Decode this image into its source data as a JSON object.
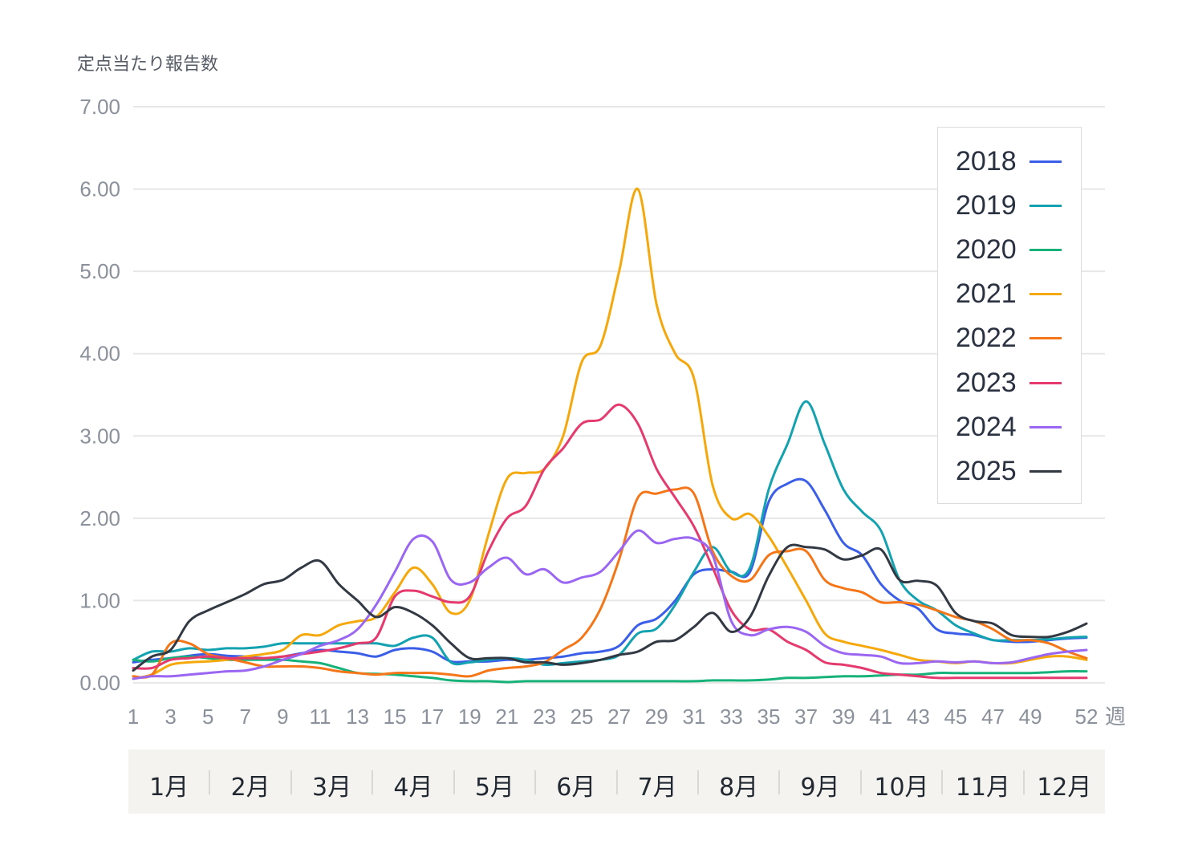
{
  "chart_data": {
    "type": "line",
    "ylabel": "定点当たり報告数",
    "ylim": [
      0,
      7
    ],
    "yticks": [
      "0.00",
      "1.00",
      "2.00",
      "3.00",
      "4.00",
      "5.00",
      "6.00",
      "7.00"
    ],
    "xlim": [
      1,
      52
    ],
    "xticks": [
      "1",
      "3",
      "5",
      "7",
      "9",
      "11",
      "13",
      "15",
      "17",
      "19",
      "21",
      "23",
      "25",
      "27",
      "29",
      "31",
      "33",
      "35",
      "37",
      "39",
      "41",
      "43",
      "45",
      "47",
      "49",
      "52"
    ],
    "xunit": "週",
    "months": [
      "1月",
      "2月",
      "3月",
      "4月",
      "5月",
      "6月",
      "7月",
      "8月",
      "9月",
      "10月",
      "11月",
      "12月"
    ],
    "grid": true,
    "legend_position": "top-right",
    "x": [
      1,
      2,
      3,
      4,
      5,
      6,
      7,
      8,
      9,
      10,
      11,
      12,
      13,
      14,
      15,
      16,
      17,
      18,
      19,
      20,
      21,
      22,
      23,
      24,
      25,
      26,
      27,
      28,
      29,
      30,
      31,
      32,
      33,
      34,
      35,
      36,
      37,
      38,
      39,
      40,
      41,
      42,
      43,
      44,
      45,
      46,
      47,
      48,
      49,
      50,
      51,
      52
    ],
    "series": [
      {
        "name": "2018",
        "color": "#3b5ee8",
        "values": [
          0.25,
          0.28,
          0.3,
          0.33,
          0.35,
          0.33,
          0.32,
          0.3,
          0.32,
          0.36,
          0.4,
          0.38,
          0.36,
          0.32,
          0.4,
          0.42,
          0.38,
          0.26,
          0.26,
          0.26,
          0.28,
          0.28,
          0.3,
          0.32,
          0.36,
          0.38,
          0.45,
          0.7,
          0.78,
          1.0,
          1.32,
          1.38,
          1.35,
          1.35,
          2.2,
          2.42,
          2.45,
          2.1,
          1.7,
          1.55,
          1.2,
          1.0,
          0.9,
          0.65,
          0.6,
          0.58,
          0.52,
          0.5,
          0.5,
          0.52,
          0.54,
          0.55
        ]
      },
      {
        "name": "2019",
        "color": "#13a2b0",
        "values": [
          0.28,
          0.38,
          0.38,
          0.42,
          0.4,
          0.42,
          0.42,
          0.44,
          0.48,
          0.48,
          0.48,
          0.48,
          0.48,
          0.48,
          0.45,
          0.55,
          0.55,
          0.25,
          0.25,
          0.28,
          0.3,
          0.28,
          0.22,
          0.24,
          0.26,
          0.28,
          0.34,
          0.6,
          0.66,
          0.95,
          1.35,
          1.65,
          1.35,
          1.4,
          2.35,
          2.9,
          3.42,
          2.9,
          2.35,
          2.08,
          1.85,
          1.25,
          1.0,
          0.88,
          0.7,
          0.6,
          0.52,
          0.52,
          0.52,
          0.53,
          0.55,
          0.56
        ]
      },
      {
        "name": "2020",
        "color": "#16b27a",
        "values": [
          0.28,
          0.26,
          0.3,
          0.32,
          0.3,
          0.28,
          0.28,
          0.28,
          0.28,
          0.26,
          0.24,
          0.18,
          0.12,
          0.11,
          0.1,
          0.08,
          0.06,
          0.03,
          0.02,
          0.02,
          0.01,
          0.02,
          0.02,
          0.02,
          0.02,
          0.02,
          0.02,
          0.02,
          0.02,
          0.02,
          0.02,
          0.03,
          0.03,
          0.03,
          0.04,
          0.06,
          0.06,
          0.07,
          0.08,
          0.08,
          0.09,
          0.1,
          0.1,
          0.12,
          0.12,
          0.12,
          0.12,
          0.12,
          0.12,
          0.13,
          0.14,
          0.14
        ]
      },
      {
        "name": "2021",
        "color": "#f5a80c",
        "values": [
          0.05,
          0.1,
          0.22,
          0.25,
          0.26,
          0.28,
          0.32,
          0.35,
          0.4,
          0.58,
          0.58,
          0.7,
          0.75,
          0.8,
          1.1,
          1.4,
          1.2,
          0.85,
          1.0,
          1.8,
          2.48,
          2.55,
          2.6,
          3.0,
          3.9,
          4.1,
          5.0,
          6.0,
          4.6,
          4.0,
          3.7,
          2.4,
          2.0,
          2.05,
          1.78,
          1.4,
          1.0,
          0.6,
          0.5,
          0.45,
          0.4,
          0.34,
          0.28,
          0.26,
          0.24,
          0.26,
          0.24,
          0.24,
          0.28,
          0.32,
          0.32,
          0.28
        ]
      },
      {
        "name": "2022",
        "color": "#f47618",
        "values": [
          0.08,
          0.1,
          0.48,
          0.48,
          0.35,
          0.3,
          0.25,
          0.2,
          0.2,
          0.2,
          0.18,
          0.14,
          0.12,
          0.1,
          0.12,
          0.12,
          0.12,
          0.1,
          0.08,
          0.15,
          0.18,
          0.2,
          0.25,
          0.4,
          0.55,
          0.9,
          1.5,
          2.25,
          2.3,
          2.35,
          2.3,
          1.6,
          1.3,
          1.25,
          1.55,
          1.6,
          1.6,
          1.25,
          1.15,
          1.1,
          0.98,
          0.98,
          0.95,
          0.88,
          0.8,
          0.75,
          0.65,
          0.52,
          0.52,
          0.48,
          0.38,
          0.3
        ]
      },
      {
        "name": "2023",
        "color": "#e53a6e",
        "values": [
          0.18,
          0.18,
          0.28,
          0.3,
          0.32,
          0.3,
          0.3,
          0.3,
          0.32,
          0.35,
          0.38,
          0.42,
          0.48,
          0.55,
          1.05,
          1.12,
          1.05,
          0.98,
          1.05,
          1.6,
          2.0,
          2.15,
          2.6,
          2.85,
          3.15,
          3.2,
          3.38,
          3.15,
          2.6,
          2.25,
          1.9,
          1.4,
          0.88,
          0.65,
          0.65,
          0.5,
          0.4,
          0.25,
          0.22,
          0.18,
          0.12,
          0.1,
          0.08,
          0.06,
          0.06,
          0.06,
          0.06,
          0.06,
          0.06,
          0.06,
          0.06,
          0.06
        ]
      },
      {
        "name": "2024",
        "color": "#9a66f2",
        "values": [
          0.05,
          0.08,
          0.08,
          0.1,
          0.12,
          0.14,
          0.15,
          0.2,
          0.28,
          0.35,
          0.45,
          0.52,
          0.65,
          0.95,
          1.35,
          1.75,
          1.72,
          1.25,
          1.22,
          1.4,
          1.52,
          1.32,
          1.38,
          1.22,
          1.28,
          1.35,
          1.6,
          1.85,
          1.7,
          1.75,
          1.75,
          1.55,
          0.75,
          0.58,
          0.65,
          0.68,
          0.62,
          0.45,
          0.36,
          0.34,
          0.32,
          0.24,
          0.24,
          0.26,
          0.25,
          0.26,
          0.24,
          0.25,
          0.3,
          0.35,
          0.38,
          0.4
        ]
      },
      {
        "name": "2025",
        "color": "#323943",
        "values": [
          0.15,
          0.32,
          0.4,
          0.75,
          0.88,
          0.98,
          1.08,
          1.2,
          1.25,
          1.4,
          1.48,
          1.2,
          1.0,
          0.8,
          0.92,
          0.85,
          0.7,
          0.48,
          0.3,
          0.3,
          0.3,
          0.25,
          0.25,
          0.22,
          0.24,
          0.28,
          0.34,
          0.38,
          0.5,
          0.52,
          0.68,
          0.85,
          0.62,
          0.8,
          1.3,
          1.65,
          1.65,
          1.62,
          1.5,
          1.55,
          1.62,
          1.25,
          1.24,
          1.18,
          0.85,
          0.75,
          0.72,
          0.58,
          0.56,
          0.56,
          0.62,
          0.72
        ]
      }
    ]
  }
}
